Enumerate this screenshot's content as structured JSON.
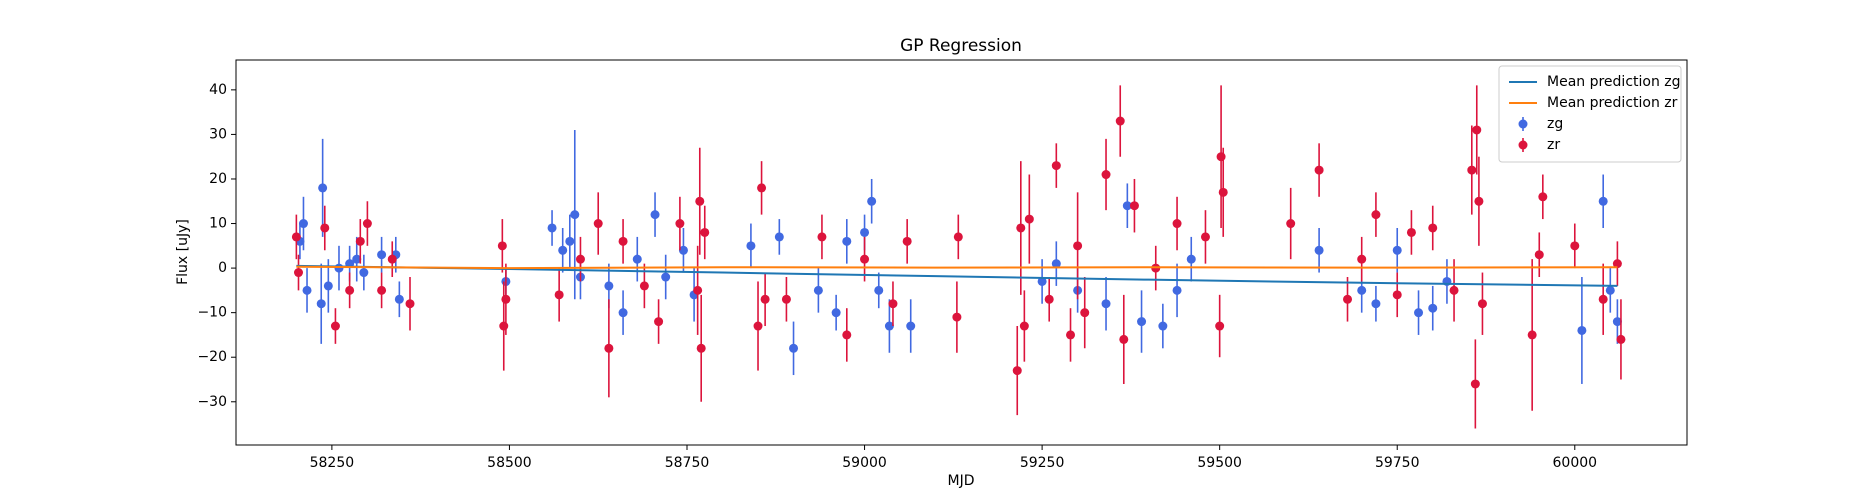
{
  "chart_data": {
    "type": "scatter",
    "title": "GP Regression",
    "xlabel": "MJD",
    "ylabel": "Flux [uJy]",
    "xlim": [
      58115,
      60158
    ],
    "ylim": [
      -39.7,
      46.7
    ],
    "xticks": [
      58250,
      58500,
      58750,
      59000,
      59250,
      59500,
      59750,
      60000
    ],
    "yticks": [
      {
        "value": -30,
        "label": "−30"
      },
      {
        "value": -20,
        "label": "−20"
      },
      {
        "value": -10,
        "label": "−10"
      },
      0,
      10,
      20,
      30,
      40
    ],
    "legend": "upper right",
    "series": [
      {
        "name": "Mean prediction zg",
        "type": "line",
        "color": "#1f77b4",
        "x": [
          58200,
          58500,
          58800,
          59100,
          59400,
          59700,
          60060
        ],
        "values": [
          0.5,
          -0.2,
          -1.0,
          -1.8,
          -2.6,
          -3.3,
          -4.0
        ]
      },
      {
        "name": "Mean prediction zr",
        "type": "line",
        "color": "#ff7f0e",
        "x": [
          58200,
          58500,
          58800,
          59100,
          59400,
          59700,
          60060
        ],
        "values": [
          0.3,
          0.0,
          0.2,
          0.1,
          0.2,
          0.1,
          0.2
        ]
      },
      {
        "name": "zg",
        "type": "errorbar",
        "color": "#4169e1",
        "x": [
          58205,
          58210,
          58215,
          58235,
          58237,
          58245,
          58260,
          58275,
          58285,
          58295,
          58320,
          58340,
          58345,
          58495,
          58560,
          58575,
          58585,
          58592,
          58600,
          58640,
          58660,
          58680,
          58705,
          58720,
          58745,
          58760,
          58840,
          58880,
          58900,
          58935,
          58960,
          58975,
          59000,
          59010,
          59020,
          59035,
          59065,
          59250,
          59270,
          59300,
          59340,
          59370,
          59390,
          59420,
          59440,
          59460,
          59640,
          59700,
          59720,
          59750,
          59780,
          59800,
          59820,
          60010,
          60040,
          60050,
          60060
        ],
        "values": [
          6,
          10,
          -5,
          -8,
          18,
          -4,
          0,
          1,
          2,
          -1,
          3,
          3,
          -7,
          -3,
          9,
          4,
          6,
          12,
          -2,
          -4,
          -10,
          2,
          12,
          -2,
          4,
          -6,
          5,
          7,
          -18,
          -5,
          -10,
          6,
          8,
          15,
          -5,
          -13,
          -13,
          -3,
          1,
          -5,
          -8,
          14,
          -12,
          -13,
          -5,
          2,
          4,
          -5,
          -8,
          4,
          -10,
          -9,
          -3,
          -14,
          15,
          -5,
          -12
        ],
        "errors": [
          4,
          6,
          5,
          9,
          11,
          6,
          5,
          4,
          5,
          4,
          4,
          4,
          4,
          3,
          4,
          5,
          6,
          19,
          5,
          5,
          5,
          5,
          5,
          5,
          5,
          6,
          5,
          4,
          6,
          5,
          4,
          5,
          4,
          5,
          4,
          6,
          6,
          5,
          5,
          5,
          6,
          5,
          7,
          5,
          6,
          5,
          5,
          5,
          4,
          5,
          5,
          5,
          5,
          12,
          6,
          5,
          5
        ]
      },
      {
        "name": "zr",
        "type": "errorbar",
        "color": "#dc143c",
        "x": [
          58200,
          58203,
          58240,
          58255,
          58275,
          58290,
          58300,
          58320,
          58335,
          58360,
          58490,
          58492,
          58495,
          58570,
          58600,
          58625,
          58640,
          58660,
          58690,
          58710,
          58740,
          58765,
          58768,
          58770,
          58775,
          58850,
          58855,
          58860,
          58890,
          58940,
          58975,
          59000,
          59040,
          59060,
          59130,
          59132,
          59215,
          59220,
          59225,
          59232,
          59260,
          59270,
          59290,
          59300,
          59310,
          59340,
          59360,
          59365,
          59380,
          59410,
          59440,
          59480,
          59500,
          59502,
          59505,
          59600,
          59640,
          59680,
          59700,
          59720,
          59750,
          59770,
          59800,
          59830,
          59855,
          59860,
          59862,
          59865,
          59870,
          59940,
          59950,
          59955,
          60000,
          60040,
          60060,
          60065
        ],
        "values": [
          7,
          -1,
          9,
          -13,
          -5,
          6,
          10,
          -5,
          2,
          -8,
          5,
          -13,
          -7,
          -6,
          2,
          10,
          -18,
          6,
          -4,
          -12,
          10,
          -5,
          15,
          -18,
          8,
          -13,
          18,
          -7,
          -7,
          7,
          -15,
          2,
          -8,
          6,
          -11,
          7,
          -23,
          9,
          -13,
          11,
          -7,
          23,
          -15,
          5,
          -10,
          21,
          33,
          -16,
          14,
          0,
          10,
          7,
          -13,
          25,
          17,
          10,
          22,
          -7,
          2,
          12,
          -6,
          8,
          9,
          -5,
          22,
          -26,
          31,
          15,
          -8,
          -15,
          3,
          16,
          5,
          -7,
          1,
          -16
        ],
        "errors": [
          5,
          4,
          5,
          4,
          4,
          5,
          5,
          4,
          4,
          6,
          6,
          10,
          8,
          6,
          5,
          7,
          11,
          5,
          5,
          5,
          6,
          10,
          12,
          12,
          6,
          10,
          6,
          6,
          5,
          5,
          6,
          5,
          5,
          5,
          8,
          5,
          10,
          15,
          8,
          10,
          5,
          5,
          6,
          12,
          8,
          8,
          8,
          10,
          6,
          5,
          6,
          6,
          7,
          16,
          10,
          8,
          6,
          5,
          5,
          5,
          5,
          5,
          5,
          7,
          10,
          10,
          10,
          10,
          7,
          17,
          5,
          5,
          5,
          8,
          5,
          9
        ]
      }
    ]
  }
}
